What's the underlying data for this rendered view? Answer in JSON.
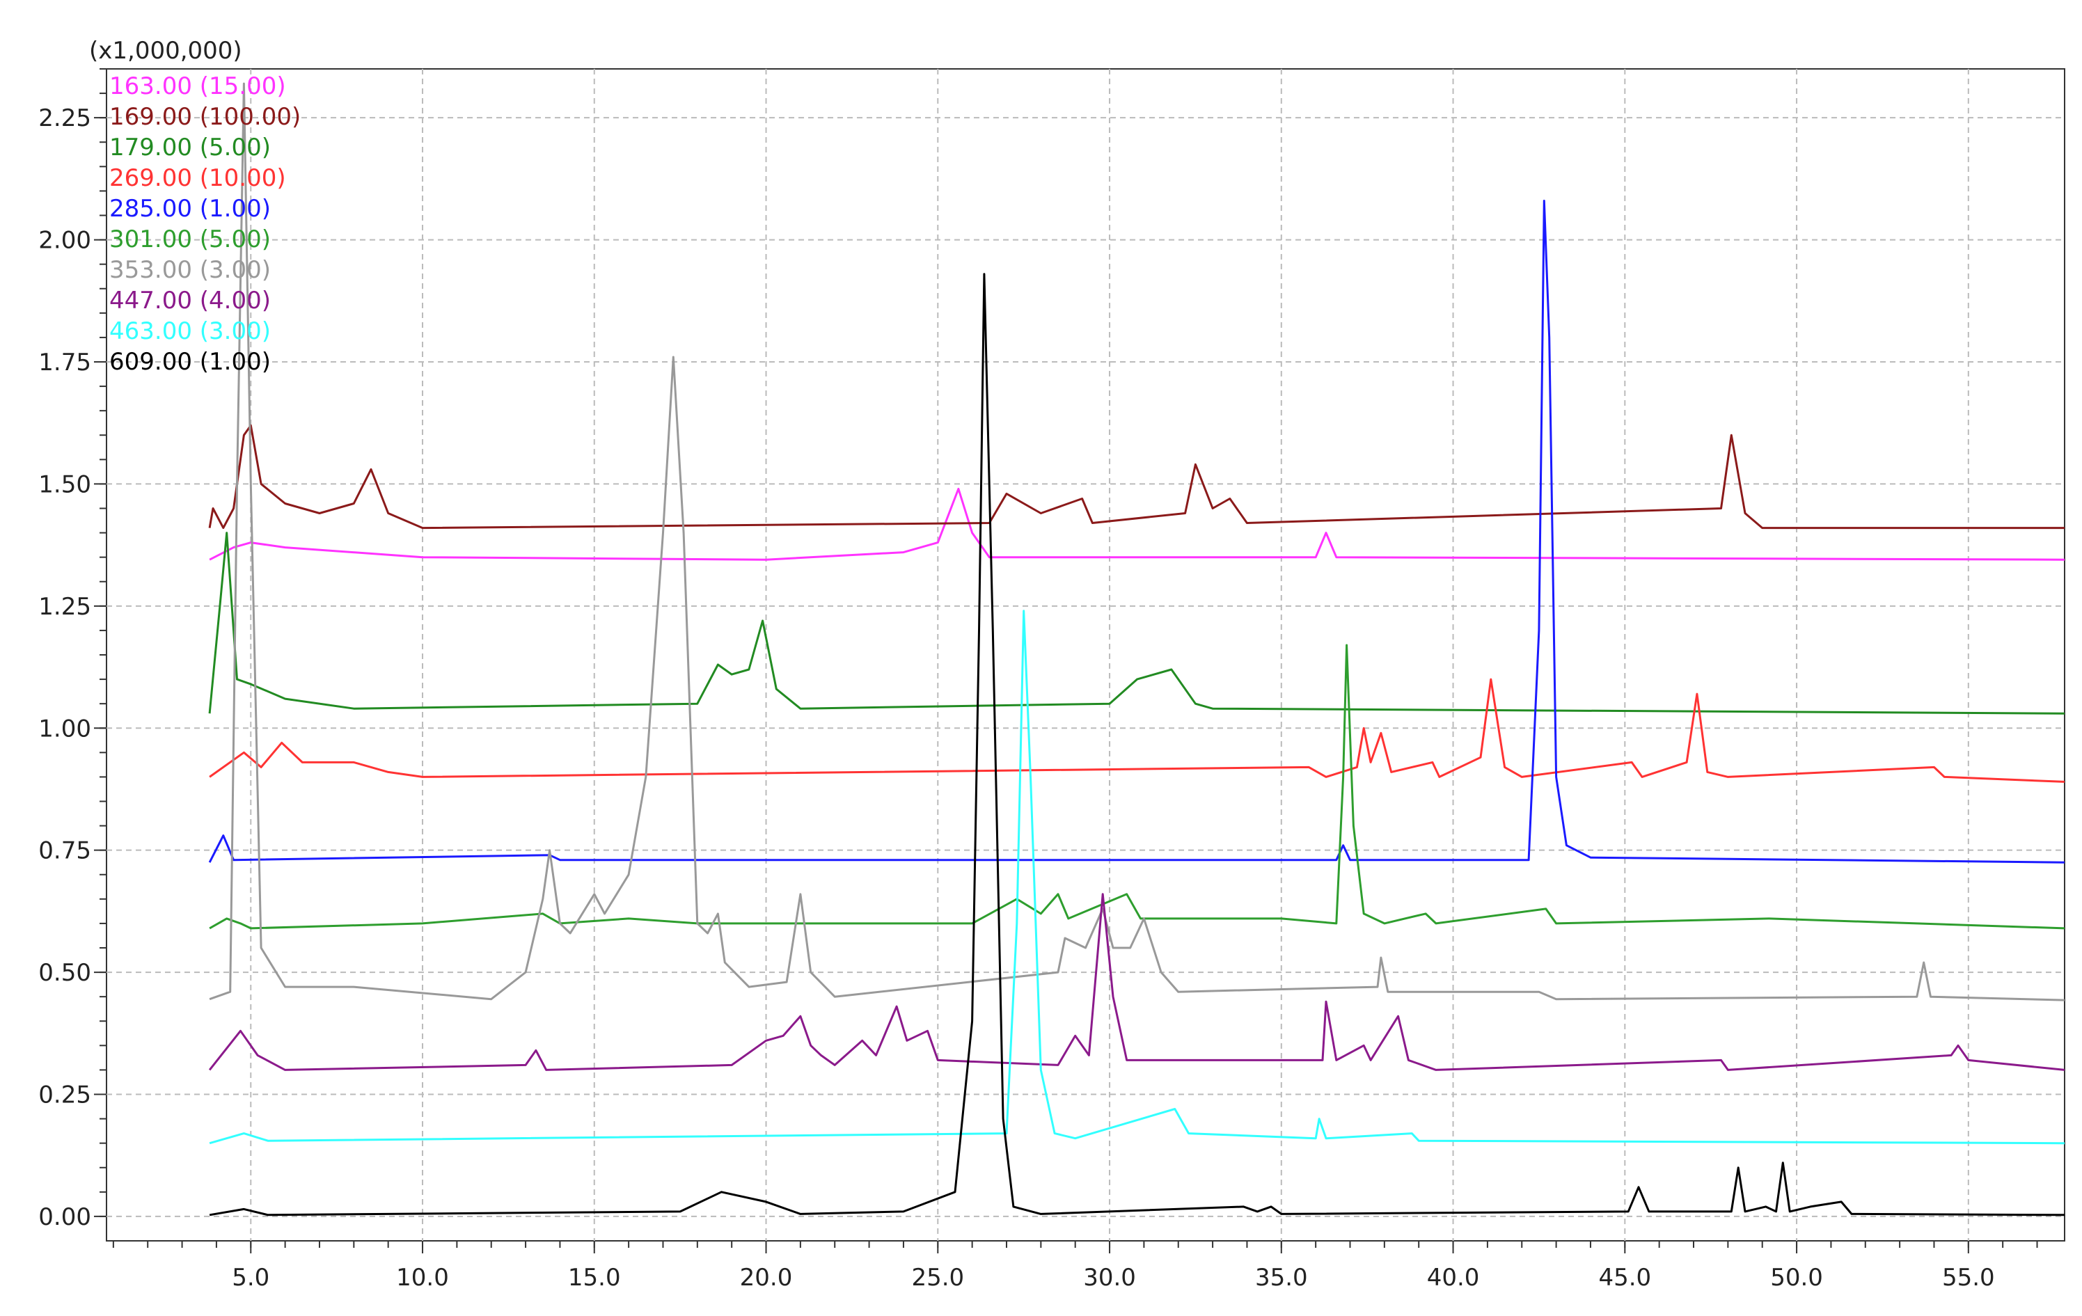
{
  "chart_data": {
    "type": "line",
    "y_multiplier": "(x1,000,000)",
    "xlim": [
      0.8,
      57.8
    ],
    "ylim": [
      -0.05,
      2.35
    ],
    "xticks": [
      {
        "value": 5,
        "label": "5.0"
      },
      {
        "value": 10,
        "label": "10.0"
      },
      {
        "value": 15,
        "label": "15.0"
      },
      {
        "value": 20,
        "label": "20.0"
      },
      {
        "value": 25,
        "label": "25.0"
      },
      {
        "value": 30,
        "label": "30.0"
      },
      {
        "value": 35,
        "label": "35.0"
      },
      {
        "value": 40,
        "label": "40.0"
      },
      {
        "value": 45,
        "label": "45.0"
      },
      {
        "value": 50,
        "label": "50.0"
      },
      {
        "value": 55,
        "label": "55.0"
      }
    ],
    "yticks": [
      {
        "value": 0,
        "label": "0.00"
      },
      {
        "value": 0.25,
        "label": "0.25"
      },
      {
        "value": 0.5,
        "label": "0.50"
      },
      {
        "value": 0.75,
        "label": "0.75"
      },
      {
        "value": 1,
        "label": "1.00"
      },
      {
        "value": 1.25,
        "label": "1.25"
      },
      {
        "value": 1.5,
        "label": "1.50"
      },
      {
        "value": 1.75,
        "label": "1.75"
      },
      {
        "value": 2,
        "label": "2.00"
      },
      {
        "value": 2.25,
        "label": "2.25"
      }
    ],
    "grid": true,
    "legend": "top-left",
    "series": [
      {
        "name": "163.00 (15.00)",
        "color": "#ff33ff",
        "x": [
          3.8,
          4.5,
          5,
          6,
          10,
          20,
          24,
          25,
          25.6,
          26,
          26.5,
          36,
          36.3,
          36.6,
          57.8
        ],
        "values": [
          1.345,
          1.37,
          1.38,
          1.37,
          1.35,
          1.345,
          1.36,
          1.38,
          1.49,
          1.4,
          1.35,
          1.35,
          1.4,
          1.35,
          1.345
        ]
      },
      {
        "name": "169.00 (100.00)",
        "color": "#8b1a1a",
        "x": [
          3.8,
          3.9,
          4.2,
          4.5,
          4.8,
          5.0,
          5.3,
          6,
          7,
          8,
          8.5,
          9,
          10,
          26.5,
          27,
          28,
          29.2,
          29.5,
          32.2,
          32.5,
          33,
          33.5,
          34,
          47.8,
          48.1,
          48.5,
          49,
          57.8
        ],
        "values": [
          1.41,
          1.45,
          1.41,
          1.45,
          1.6,
          1.62,
          1.5,
          1.46,
          1.44,
          1.46,
          1.53,
          1.44,
          1.41,
          1.42,
          1.48,
          1.44,
          1.47,
          1.42,
          1.44,
          1.54,
          1.45,
          1.47,
          1.42,
          1.45,
          1.6,
          1.44,
          1.41,
          1.41
        ]
      },
      {
        "name": "179.00 (5.00)",
        "color": "#228b22",
        "x": [
          3.8,
          4.1,
          4.3,
          4.6,
          5,
          6,
          8,
          18,
          18.6,
          19,
          19.5,
          19.9,
          20.3,
          21,
          30,
          30.8,
          31.8,
          32.5,
          33,
          57.8
        ],
        "values": [
          1.03,
          1.25,
          1.4,
          1.1,
          1.09,
          1.06,
          1.04,
          1.05,
          1.13,
          1.11,
          1.12,
          1.22,
          1.08,
          1.04,
          1.05,
          1.1,
          1.12,
          1.05,
          1.04,
          1.03
        ]
      },
      {
        "name": "269.00 (10.00)",
        "color": "#ff3333",
        "x": [
          3.8,
          4.8,
          5.3,
          5.9,
          6.5,
          8,
          9,
          10,
          35.8,
          36.3,
          37.2,
          37.4,
          37.6,
          37.9,
          38.2,
          39.4,
          39.6,
          40.8,
          41.1,
          41.5,
          42,
          45.2,
          45.5,
          46.8,
          47.1,
          47.4,
          48,
          54,
          54.3,
          57.8
        ],
        "values": [
          0.9,
          0.95,
          0.92,
          0.97,
          0.93,
          0.93,
          0.91,
          0.9,
          0.92,
          0.9,
          0.92,
          1.0,
          0.93,
          0.99,
          0.91,
          0.93,
          0.9,
          0.94,
          1.1,
          0.92,
          0.9,
          0.93,
          0.9,
          0.93,
          1.07,
          0.91,
          0.9,
          0.92,
          0.9,
          0.89
        ]
      },
      {
        "name": "285.00 (1.00)",
        "color": "#1a1aff",
        "x": [
          3.8,
          4.2,
          4.5,
          13.7,
          14,
          36.6,
          36.8,
          37.0,
          42.2,
          42.5,
          42.65,
          42.8,
          43.0,
          43.3,
          44,
          57.8
        ],
        "values": [
          0.725,
          0.78,
          0.73,
          0.74,
          0.73,
          0.73,
          0.76,
          0.73,
          0.73,
          1.2,
          2.08,
          1.8,
          0.9,
          0.76,
          0.735,
          0.725
        ]
      },
      {
        "name": "301.00 (5.00)",
        "color": "#2e9e2e",
        "x": [
          3.8,
          4.3,
          4.7,
          5,
          10,
          13.5,
          14,
          16,
          18,
          26,
          27.3,
          28,
          28.5,
          28.8,
          30.5,
          30.9,
          35,
          36.6,
          36.8,
          36.9,
          37.1,
          37.4,
          38,
          39.2,
          39.5,
          42.7,
          43,
          49.2,
          57.8
        ],
        "values": [
          0.59,
          0.61,
          0.6,
          0.59,
          0.6,
          0.62,
          0.6,
          0.61,
          0.6,
          0.6,
          0.65,
          0.62,
          0.66,
          0.61,
          0.66,
          0.61,
          0.61,
          0.6,
          0.9,
          1.17,
          0.8,
          0.62,
          0.6,
          0.62,
          0.6,
          0.63,
          0.6,
          0.61,
          0.59
        ]
      },
      {
        "name": "353.00 (3.00)",
        "color": "#999999",
        "x": [
          3.8,
          4.4,
          4.6,
          4.8,
          5.0,
          5.3,
          6,
          8,
          12,
          13.0,
          13.5,
          13.7,
          14.0,
          14.3,
          15,
          15.3,
          16,
          16.5,
          17.0,
          17.3,
          17.6,
          18,
          18.3,
          18.6,
          18.8,
          19.5,
          20.6,
          21.0,
          21.3,
          22,
          28.5,
          28.7,
          29.3,
          29.8,
          30.1,
          30.6,
          31,
          31.5,
          32,
          37.8,
          37.9,
          38.1,
          42.5,
          43,
          53.5,
          53.7,
          53.9,
          57.8
        ],
        "values": [
          0.445,
          0.46,
          1.5,
          2.32,
          1.5,
          0.55,
          0.47,
          0.47,
          0.445,
          0.5,
          0.65,
          0.75,
          0.6,
          0.58,
          0.66,
          0.62,
          0.7,
          0.9,
          1.4,
          1.76,
          1.4,
          0.6,
          0.58,
          0.62,
          0.52,
          0.47,
          0.48,
          0.66,
          0.5,
          0.45,
          0.5,
          0.57,
          0.55,
          0.63,
          0.55,
          0.55,
          0.61,
          0.5,
          0.46,
          0.47,
          0.53,
          0.46,
          0.46,
          0.445,
          0.45,
          0.52,
          0.45,
          0.443
        ]
      },
      {
        "name": "447.00 (4.00)",
        "color": "#8b1a8b",
        "x": [
          3.8,
          4.7,
          5.2,
          6,
          13,
          13.3,
          13.6,
          19,
          20,
          20.5,
          21,
          21.3,
          21.6,
          22,
          22.8,
          23.2,
          23.8,
          24.1,
          24.7,
          25,
          28.5,
          29,
          29.4,
          29.8,
          30.1,
          30.5,
          31.5,
          36.2,
          36.3,
          36.6,
          37.4,
          37.6,
          38.4,
          38.7,
          39.5,
          47.8,
          48,
          54.5,
          54.7,
          55,
          57.8
        ],
        "values": [
          0.3,
          0.38,
          0.33,
          0.3,
          0.31,
          0.34,
          0.3,
          0.31,
          0.36,
          0.37,
          0.41,
          0.35,
          0.33,
          0.31,
          0.36,
          0.33,
          0.43,
          0.36,
          0.38,
          0.32,
          0.31,
          0.37,
          0.33,
          0.66,
          0.45,
          0.32,
          0.32,
          0.32,
          0.44,
          0.32,
          0.35,
          0.32,
          0.41,
          0.32,
          0.3,
          0.32,
          0.3,
          0.33,
          0.35,
          0.32,
          0.3
        ]
      },
      {
        "name": "463.00 (3.00)",
        "color": "#33ffff",
        "x": [
          3.8,
          4.8,
          5.5,
          27,
          27.3,
          27.5,
          27.7,
          28,
          28.4,
          29,
          31.9,
          32.3,
          36,
          36.1,
          36.3,
          38.8,
          39,
          57.8
        ],
        "values": [
          0.15,
          0.17,
          0.155,
          0.17,
          0.6,
          1.24,
          0.9,
          0.3,
          0.17,
          0.16,
          0.22,
          0.17,
          0.16,
          0.2,
          0.16,
          0.17,
          0.155,
          0.15
        ]
      },
      {
        "name": "609.00 (1.00)",
        "color": "#000000",
        "x": [
          3.8,
          4.8,
          5.5,
          17.5,
          18.7,
          20,
          21,
          24,
          25.5,
          26,
          26.2,
          26.35,
          26.6,
          26.9,
          27.2,
          28,
          33.9,
          34.3,
          34.7,
          35,
          45.1,
          45.4,
          45.7,
          48.1,
          48.3,
          48.5,
          49.1,
          49.4,
          49.6,
          49.8,
          50.4,
          51.3,
          51.6,
          57.8
        ],
        "values": [
          0.003,
          0.015,
          0.003,
          0.01,
          0.05,
          0.03,
          0.005,
          0.01,
          0.05,
          0.4,
          1.2,
          1.93,
          1.2,
          0.2,
          0.02,
          0.005,
          0.02,
          0.01,
          0.02,
          0.005,
          0.01,
          0.06,
          0.01,
          0.01,
          0.1,
          0.01,
          0.02,
          0.01,
          0.11,
          0.01,
          0.02,
          0.03,
          0.005,
          0.003
        ]
      }
    ]
  }
}
